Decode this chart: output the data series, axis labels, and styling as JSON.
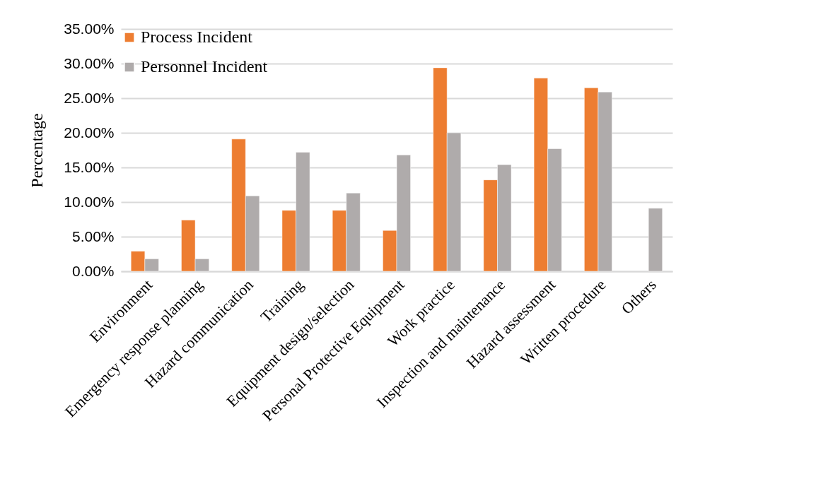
{
  "chart_data": {
    "type": "bar",
    "ylabel": "Percentage",
    "categories": [
      "Environment",
      "Emergency response planning",
      "Hazard communication",
      "Training",
      "Equipment design/selection",
      "Personal Protective Equipment",
      "Work practice",
      "Inspection and maintenance",
      "Hazard assessment",
      "Written procedure",
      "Others"
    ],
    "series": [
      {
        "name": "Process Incident",
        "color": "#ed7d31",
        "values": [
          2.9,
          7.4,
          19.1,
          8.8,
          8.8,
          5.9,
          29.4,
          13.2,
          27.9,
          26.5,
          null
        ]
      },
      {
        "name": "Personnel Incident",
        "color": "#afabab",
        "values": [
          1.8,
          1.8,
          10.9,
          17.2,
          11.3,
          16.8,
          20.0,
          15.4,
          17.7,
          25.9,
          9.1
        ]
      }
    ],
    "ylim": [
      0,
      35
    ],
    "yticks": [
      {
        "value": 0,
        "label": "0.00%"
      },
      {
        "value": 5,
        "label": "5.00%"
      },
      {
        "value": 10,
        "label": "10.00%"
      },
      {
        "value": 15,
        "label": "15.00%"
      },
      {
        "value": 20,
        "label": "20.00%"
      },
      {
        "value": 25,
        "label": "25.00%"
      },
      {
        "value": 30,
        "label": "30.00%"
      },
      {
        "value": 35,
        "label": "35.00%"
      }
    ],
    "grid": "y",
    "legend": "top left"
  }
}
